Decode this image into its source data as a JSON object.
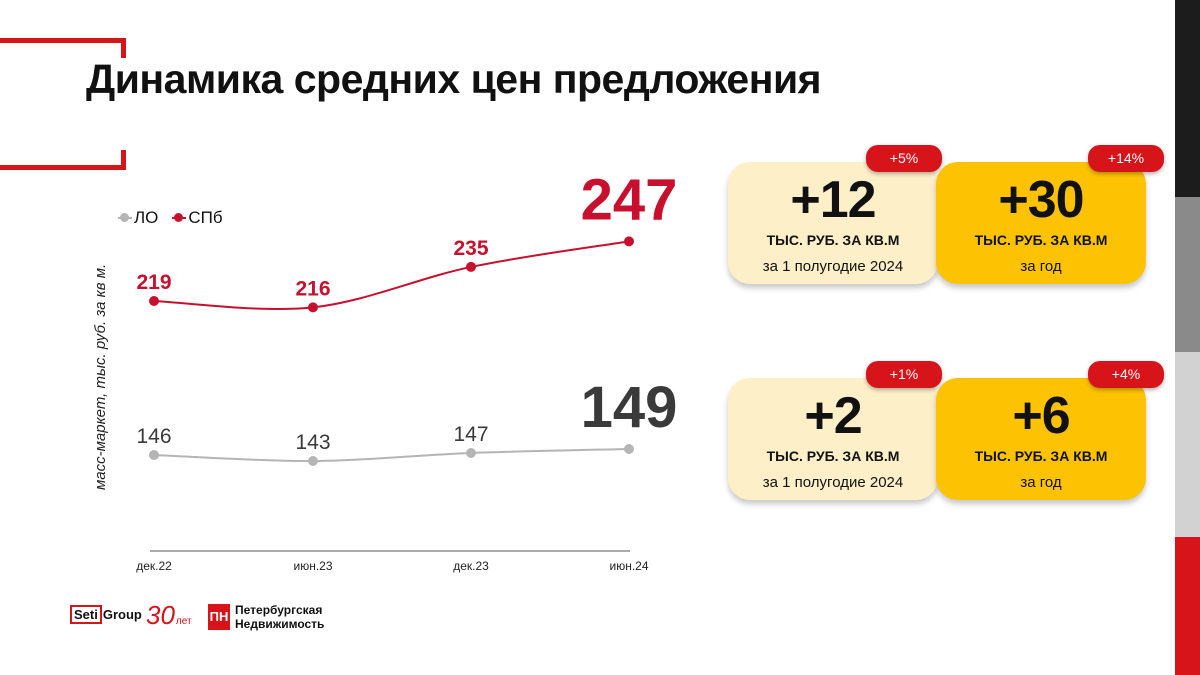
{
  "title": "Динамика средних цен предложения",
  "ylabel": "масс-маркет, тыс. руб. за кв м.",
  "colors": {
    "red": "#d7141a",
    "gray": "#b5b5b5",
    "gold": "#fdc303",
    "light": "#fdf0c9"
  },
  "chart_data": {
    "type": "line",
    "categories": [
      "дек.22",
      "июн.23",
      "дек.23",
      "июн.24"
    ],
    "series": [
      {
        "name": "ЛО",
        "values": [
          146,
          143,
          147,
          149
        ],
        "labels": [
          "146",
          "143",
          "147",
          "149"
        ],
        "color": "#b5b5b5",
        "label_color": "#3a3a3a"
      },
      {
        "name": "СПб",
        "values": [
          219,
          216,
          235,
          247
        ],
        "labels": [
          "219",
          "216",
          "235",
          "247"
        ],
        "color": "#c8102e",
        "label_color": "#c8102e"
      }
    ],
    "ylabel": "масс-маркет, тыс. руб. за кв м.",
    "legend": "top-left",
    "grid": false
  },
  "cards": [
    {
      "value": "+12",
      "unit": "ТЫС. РУБ. ЗА КВ.М",
      "period": "за 1 полугодие 2024",
      "badge": "+5%",
      "style": "light"
    },
    {
      "value": "+30",
      "unit": "ТЫС. РУБ. ЗА КВ.М",
      "period": "за год",
      "badge": "+14%",
      "style": "gold"
    },
    {
      "value": "+2",
      "unit": "ТЫС. РУБ. ЗА КВ.М",
      "period": "за 1 полугодие 2024",
      "badge": "+1%",
      "style": "light"
    },
    {
      "value": "+6",
      "unit": "ТЫС. РУБ. ЗА КВ.М",
      "period": "за год",
      "badge": "+4%",
      "style": "gold"
    }
  ],
  "logos": {
    "seti_box": "Seti",
    "seti_rest": "Group",
    "anniv": "30",
    "anniv_sub": "лет",
    "pn_line1": "Петербургская",
    "pn_line2": "Недвижимость",
    "pn_mark": "ПН"
  }
}
